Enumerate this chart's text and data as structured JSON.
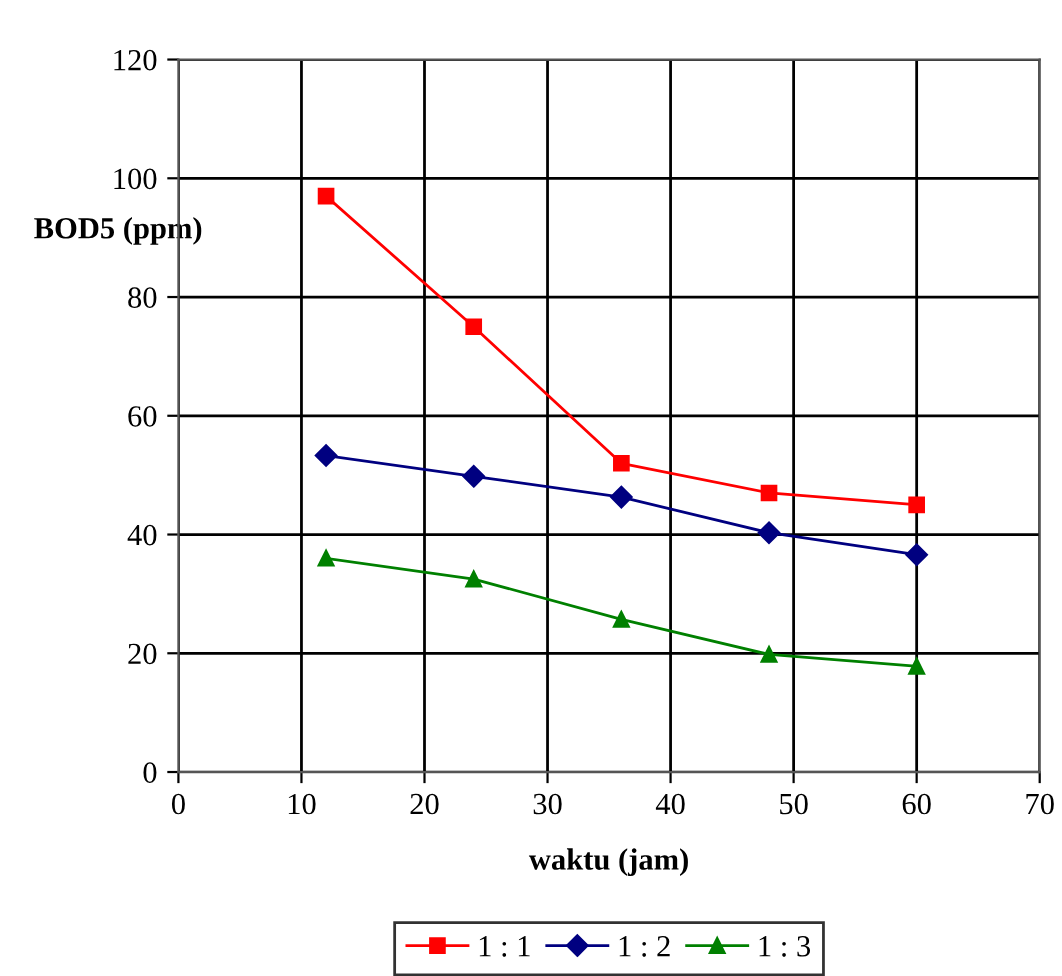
{
  "chart_data": {
    "type": "line",
    "xlabel": "waktu (jam)",
    "ylabel": "BOD5 (ppm)",
    "x": [
      12,
      24,
      36,
      48,
      60
    ],
    "series": [
      {
        "name": "1 : 1",
        "color": "#ff0000",
        "marker": "square",
        "values": [
          97,
          75,
          52,
          47,
          45
        ]
      },
      {
        "name": "1 : 2",
        "color": "#000080",
        "marker": "diamond",
        "values": [
          53.3,
          49.8,
          46.3,
          40.3,
          36.6
        ]
      },
      {
        "name": "1 : 3",
        "color": "#008000",
        "marker": "triangle",
        "values": [
          36,
          32.5,
          25.7,
          19.8,
          17.8
        ]
      }
    ],
    "xlim": [
      0,
      70
    ],
    "xticks": [
      0,
      10,
      20,
      30,
      40,
      50,
      60,
      70
    ],
    "ylim": [
      0,
      120
    ],
    "yticks": [
      0,
      20,
      40,
      60,
      80,
      100,
      120
    ],
    "grid": true,
    "legend": "bottom",
    "line_style": "solid"
  }
}
